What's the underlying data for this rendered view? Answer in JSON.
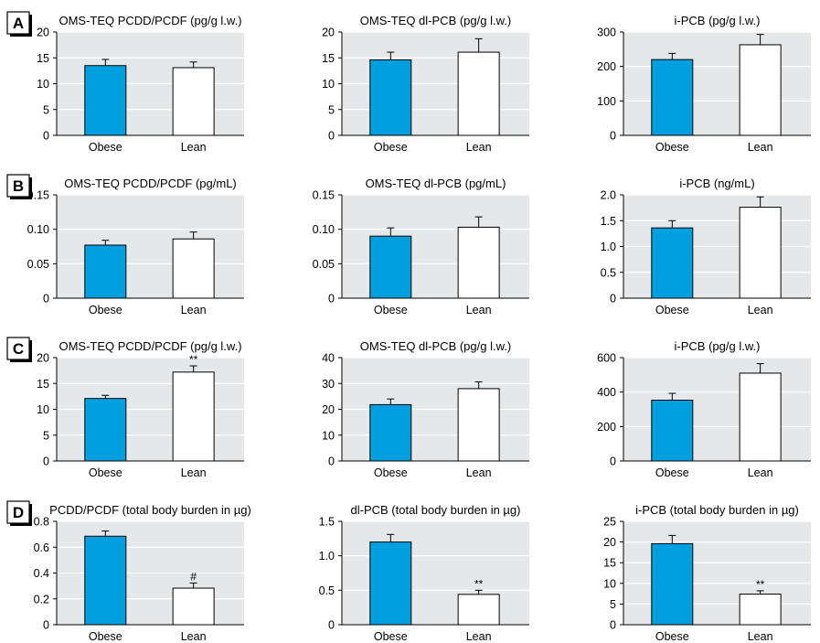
{
  "colors": {
    "obese": "#00a0e0",
    "lean": "#ffffff",
    "plot_background": "#e6e7e8",
    "gridline": "#ffffff",
    "outline": "#000000"
  },
  "chart_data": [
    {
      "type": "bar",
      "panel": "A",
      "title": "OMS-TEQ PCDD/PCDF (pg/g l.w.)",
      "categories": [
        "Obese",
        "Lean"
      ],
      "values": [
        13.5,
        13.1
      ],
      "errors": [
        1.2,
        1.1
      ],
      "annotations": [
        "",
        ""
      ],
      "ylim": [
        0,
        20
      ],
      "yticks": [
        "0",
        "5",
        "10",
        "15",
        "20"
      ],
      "grid": true
    },
    {
      "type": "bar",
      "panel": "",
      "title": "OMS-TEQ dl-PCB (pg/g l.w.)",
      "categories": [
        "Obese",
        "Lean"
      ],
      "values": [
        14.6,
        16.1
      ],
      "errors": [
        1.5,
        2.6
      ],
      "annotations": [
        "",
        ""
      ],
      "ylim": [
        0,
        20
      ],
      "yticks": [
        "0",
        "5",
        "10",
        "15",
        "20"
      ],
      "grid": true
    },
    {
      "type": "bar",
      "panel": "",
      "title": "i-PCB (pg/g l.w.)",
      "categories": [
        "Obese",
        "Lean"
      ],
      "values": [
        220,
        263
      ],
      "errors": [
        18,
        30
      ],
      "annotations": [
        "",
        ""
      ],
      "ylim": [
        0,
        300
      ],
      "yticks": [
        "0",
        "100",
        "200",
        "300"
      ],
      "grid": true
    },
    {
      "type": "bar",
      "panel": "B",
      "title": "OMS-TEQ PCDD/PCDF (pg/mL)",
      "categories": [
        "Obese",
        "Lean"
      ],
      "values": [
        0.077,
        0.086
      ],
      "errors": [
        0.007,
        0.01
      ],
      "annotations": [
        "",
        ""
      ],
      "ylim": [
        0,
        0.15
      ],
      "yticks": [
        "0",
        "0.05",
        "0.10",
        "0.15"
      ],
      "grid": true
    },
    {
      "type": "bar",
      "panel": "",
      "title": "OMS-TEQ dl-PCB (pg/mL)",
      "categories": [
        "Obese",
        "Lean"
      ],
      "values": [
        0.09,
        0.103
      ],
      "errors": [
        0.012,
        0.015
      ],
      "annotations": [
        "",
        ""
      ],
      "ylim": [
        0,
        0.15
      ],
      "yticks": [
        "0",
        "0.05",
        "0.10",
        "0.15"
      ],
      "grid": true
    },
    {
      "type": "bar",
      "panel": "",
      "title": "i-PCB (ng/mL)",
      "categories": [
        "Obese",
        "Lean"
      ],
      "values": [
        1.36,
        1.76
      ],
      "errors": [
        0.14,
        0.2
      ],
      "annotations": [
        "",
        ""
      ],
      "ylim": [
        0,
        2.0
      ],
      "yticks": [
        "0",
        "0.5",
        "1.0",
        "1.5",
        "2.0"
      ],
      "grid": true
    },
    {
      "type": "bar",
      "panel": "C",
      "title": "OMS-TEQ PCDD/PCDF (pg/g l.w.)",
      "categories": [
        "Obese",
        "Lean"
      ],
      "values": [
        12.1,
        17.2
      ],
      "errors": [
        0.6,
        1.2
      ],
      "annotations": [
        "",
        "**"
      ],
      "ylim": [
        0,
        20
      ],
      "yticks": [
        "0",
        "5",
        "10",
        "15",
        "20"
      ],
      "grid": true
    },
    {
      "type": "bar",
      "panel": "",
      "title": "OMS-TEQ dl-PCB (pg/g l.w.)",
      "categories": [
        "Obese",
        "Lean"
      ],
      "values": [
        21.8,
        28.0
      ],
      "errors": [
        2.2,
        2.6
      ],
      "annotations": [
        "",
        ""
      ],
      "ylim": [
        0,
        40
      ],
      "yticks": [
        "0",
        "10",
        "20",
        "30",
        "40"
      ],
      "grid": true
    },
    {
      "type": "bar",
      "panel": "",
      "title": "i-PCB (pg/g l.w.)",
      "categories": [
        "Obese",
        "Lean"
      ],
      "values": [
        353,
        510
      ],
      "errors": [
        40,
        55
      ],
      "annotations": [
        "",
        ""
      ],
      "ylim": [
        0,
        600
      ],
      "yticks": [
        "0",
        "200",
        "400",
        "600"
      ],
      "grid": true
    },
    {
      "type": "bar",
      "panel": "D",
      "title": "PCDD/PCDF (total body burden in µg)",
      "categories": [
        "Obese",
        "Lean"
      ],
      "values": [
        0.685,
        0.283
      ],
      "errors": [
        0.04,
        0.04
      ],
      "annotations": [
        "",
        "#"
      ],
      "ylim": [
        0,
        0.8
      ],
      "yticks": [
        "0",
        "0.2",
        "0.4",
        "0.6",
        "0.8"
      ],
      "grid": true
    },
    {
      "type": "bar",
      "panel": "",
      "title": "dl-PCB (total body burden in µg)",
      "categories": [
        "Obese",
        "Lean"
      ],
      "values": [
        1.2,
        0.44
      ],
      "errors": [
        0.11,
        0.06
      ],
      "annotations": [
        "",
        "**"
      ],
      "ylim": [
        0,
        1.5
      ],
      "yticks": [
        "0",
        "0.5",
        "1.0",
        "1.5"
      ],
      "grid": true
    },
    {
      "type": "bar",
      "panel": "",
      "title": "i-PCB (total body burden in µg)",
      "categories": [
        "Obese",
        "Lean"
      ],
      "values": [
        19.6,
        7.4
      ],
      "errors": [
        2.0,
        0.8
      ],
      "annotations": [
        "",
        "**"
      ],
      "ylim": [
        0,
        25
      ],
      "yticks": [
        "0",
        "5",
        "10",
        "15",
        "20",
        "25"
      ],
      "grid": true
    }
  ]
}
